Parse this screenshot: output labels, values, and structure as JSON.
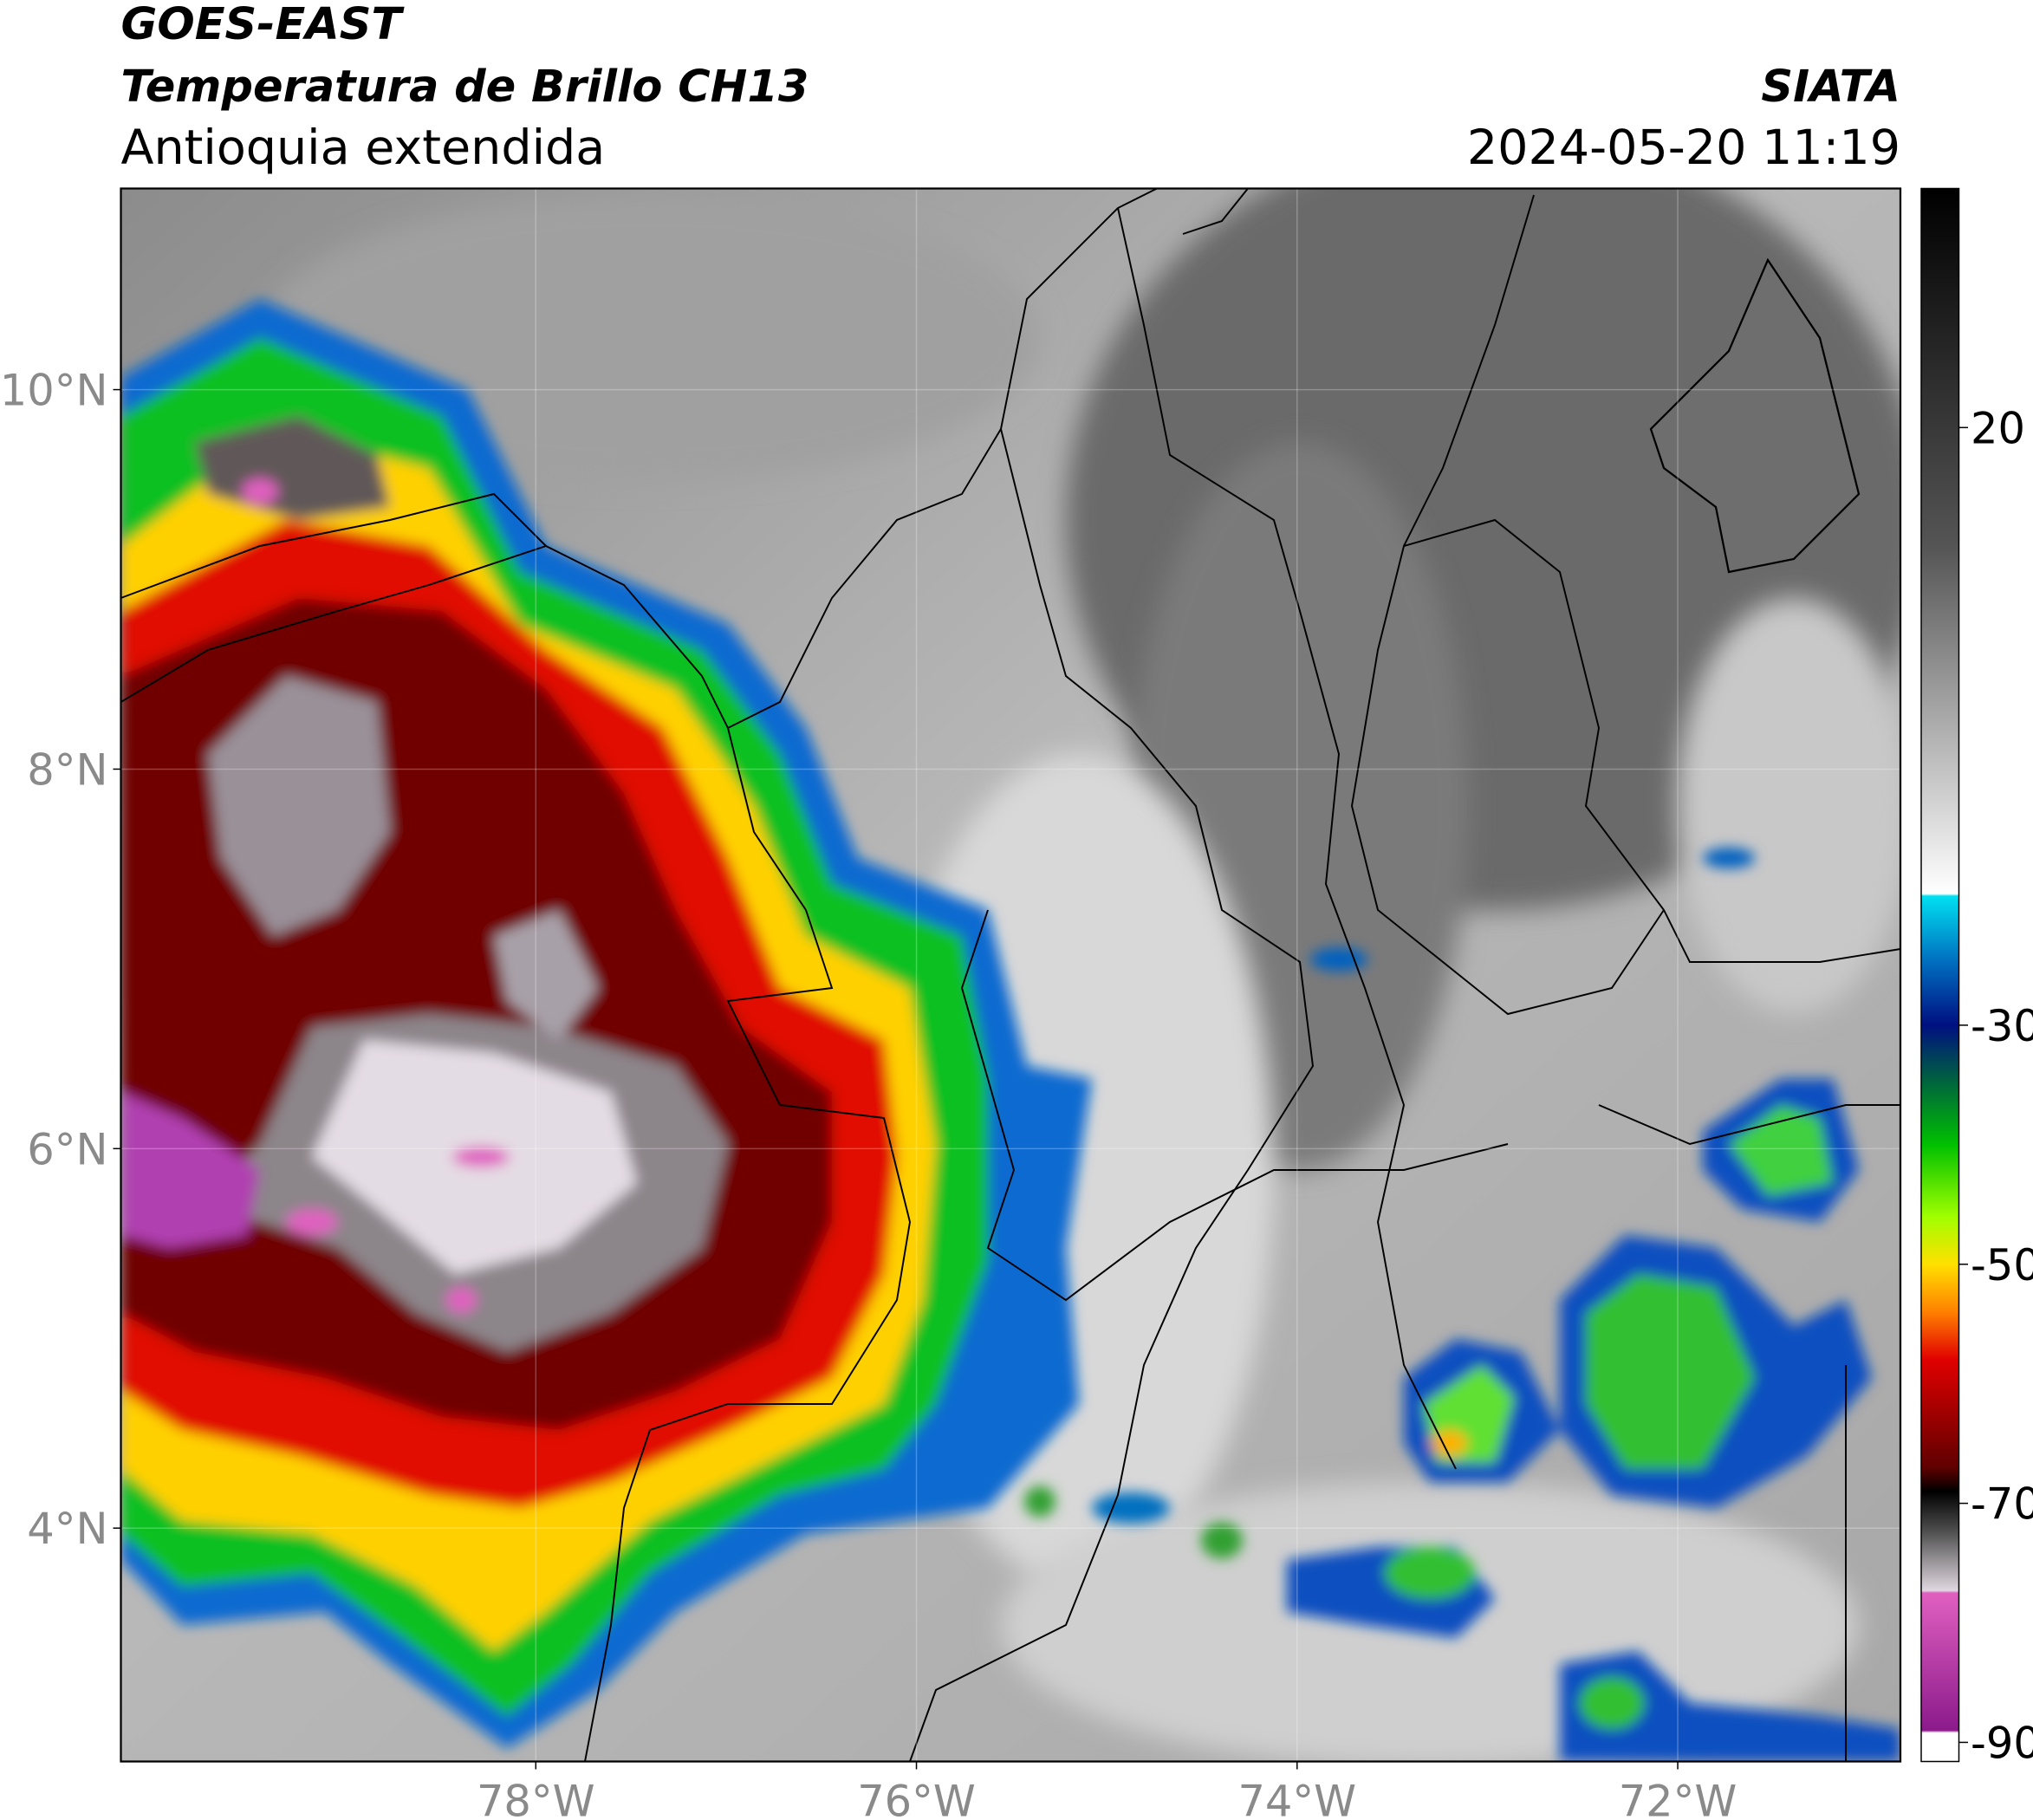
{
  "header": {
    "title": "GOES-EAST",
    "subtitle": "Temperatura de Brillo CH13",
    "region": "Antioquia extendida",
    "source": "SIATA",
    "timestamp": "2024-05-20 11:19"
  },
  "map": {
    "lonlim": [
      -80.18,
      -70.83
    ],
    "latlim": [
      2.77,
      11.06
    ],
    "xticks": [
      {
        "value": -78,
        "label": "78°W"
      },
      {
        "value": -76,
        "label": "76°W"
      },
      {
        "value": -74,
        "label": "74°W"
      },
      {
        "value": -72,
        "label": "72°W"
      }
    ],
    "yticks": [
      {
        "value": 4,
        "label": "4°N"
      },
      {
        "value": 6,
        "label": "6°N"
      },
      {
        "value": 8,
        "label": "8°N"
      },
      {
        "value": 10,
        "label": "10°N"
      }
    ],
    "grid": true
  },
  "colorbar": {
    "clim": [
      -91.6,
      40
    ],
    "ticks": [
      20,
      -30,
      -50,
      -70,
      -90
    ],
    "stops": [
      {
        "value": 40,
        "color": "#000000"
      },
      {
        "value": 10,
        "color": "#555555"
      },
      {
        "value": -19,
        "color": "#ffffff"
      },
      {
        "value": -19.2,
        "color": "#00e0f0"
      },
      {
        "value": -24.6,
        "color": "#0070c0"
      },
      {
        "value": -30,
        "color": "#001080"
      },
      {
        "value": -34.5,
        "color": "#006040"
      },
      {
        "value": -40,
        "color": "#00c000"
      },
      {
        "value": -46,
        "color": "#a0ff00"
      },
      {
        "value": -50,
        "color": "#ffe000"
      },
      {
        "value": -54,
        "color": "#ff8000"
      },
      {
        "value": -58,
        "color": "#e00000"
      },
      {
        "value": -67,
        "color": "#600000"
      },
      {
        "value": -69,
        "color": "#000000"
      },
      {
        "value": -72.4,
        "color": "#505050"
      },
      {
        "value": -77.3,
        "color": "#e0d8e0"
      },
      {
        "value": -77.5,
        "color": "#e060c0"
      },
      {
        "value": -89,
        "color": "#8b1a8b"
      },
      {
        "value": -89.2,
        "color": "#ffffff"
      },
      {
        "value": -91.6,
        "color": "#ffffff"
      }
    ]
  }
}
